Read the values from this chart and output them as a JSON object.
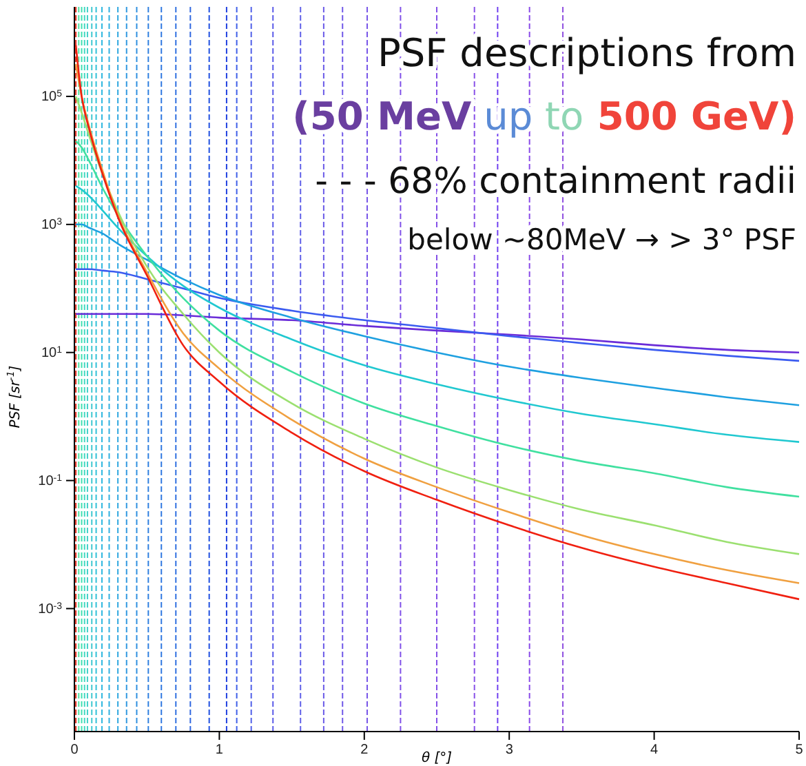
{
  "chart_data": {
    "type": "line",
    "title": "PSF descriptions from",
    "subtitle": "(50 MeV up to 500 GeV)",
    "annotations": [
      "- - - 68% containment radii",
      "below ~80MeV → > 3° PSF"
    ],
    "xlabel": "θ [°]",
    "ylabel": "PSF [sr$^{-1}$]",
    "log": "y",
    "grid": false,
    "marker": "none",
    "line_style": "solid",
    "x": [
      0.01,
      0.05,
      0.1,
      0.2,
      0.3,
      0.5,
      0.75,
      1,
      1.5,
      2,
      2.5,
      3,
      3.5,
      4,
      4.5,
      5
    ],
    "xlim": [
      0,
      5
    ],
    "xticks": [
      0,
      1,
      2,
      3,
      4,
      5
    ],
    "ylim": [
      1.2e-05,
      2500000.0
    ],
    "yticks": [
      {
        "value": 0.001,
        "label": "10$^{-3}$"
      },
      {
        "value": 0.1,
        "label": "10$^{-1}$"
      },
      {
        "value": 10,
        "label": "10$^{1}$"
      },
      {
        "value": 1000,
        "label": "10$^{3}$"
      },
      {
        "value": 100000,
        "label": "10$^{5}$"
      }
    ],
    "series": [
      {
        "color": "#6a2cd8",
        "values": [
          40,
          40,
          40,
          40,
          40,
          40,
          38,
          35,
          32,
          26,
          22,
          19,
          16,
          13,
          11,
          10
        ]
      },
      {
        "color": "#3b5bf0",
        "values": [
          200,
          200,
          200,
          190,
          180,
          140,
          100,
          71,
          45,
          32,
          24,
          18,
          14,
          11,
          8.9,
          7.4
        ]
      },
      {
        "color": "#1ea0e0",
        "values": [
          1000,
          1000,
          890,
          710,
          500,
          280,
          140,
          79,
          35,
          18,
          10,
          6.0,
          4.0,
          2.8,
          2.0,
          1.5
        ]
      },
      {
        "color": "#20c8d0",
        "values": [
          4000,
          3500,
          2800,
          1600,
          890,
          320,
          110,
          50,
          16,
          6.3,
          3.2,
          1.8,
          1.1,
          0.76,
          0.52,
          0.4
        ]
      },
      {
        "color": "#40e0a0",
        "values": [
          20000,
          16000,
          10000,
          3500,
          1400,
          320,
          71,
          22,
          5.0,
          1.6,
          0.71,
          0.35,
          0.2,
          0.13,
          0.079,
          0.056
        ]
      },
      {
        "color": "#9be070",
        "values": [
          100000,
          56000,
          25000,
          5600,
          1600,
          220,
          40,
          10,
          1.6,
          0.45,
          0.16,
          0.071,
          0.035,
          0.02,
          0.011,
          0.0071
        ]
      },
      {
        "color": "#f0a040",
        "values": [
          320000,
          100000,
          35000,
          6300,
          1400,
          180,
          20,
          5.6,
          0.89,
          0.22,
          0.079,
          0.032,
          0.014,
          0.0071,
          0.004,
          0.0025
        ]
      },
      {
        "color": "#f02010",
        "values": [
          630000,
          100000,
          32000,
          5600,
          1300,
          160,
          13,
          3.5,
          0.56,
          0.14,
          0.05,
          0.02,
          0.0089,
          0.0045,
          0.0025,
          0.0014
        ]
      }
    ],
    "ref_lines": [
      {
        "axis": "x",
        "value": 0.01,
        "color": "#e03020",
        "line_style": "dashed"
      },
      {
        "axis": "x",
        "value": 0.03,
        "color": "#50e0a0",
        "line_style": "dashed"
      },
      {
        "axis": "x",
        "value": 0.05,
        "color": "#40e0b0",
        "line_style": "dashed"
      },
      {
        "axis": "x",
        "value": 0.07,
        "color": "#40d8c0",
        "line_style": "dashed"
      },
      {
        "axis": "x",
        "value": 0.09,
        "color": "#40d0c8",
        "line_style": "dashed"
      },
      {
        "axis": "x",
        "value": 0.12,
        "color": "#40c8d0",
        "line_style": "dashed"
      },
      {
        "axis": "x",
        "value": 0.15,
        "color": "#30c0d8",
        "line_style": "dashed"
      },
      {
        "axis": "x",
        "value": 0.19,
        "color": "#30b8e0",
        "line_style": "dashed"
      },
      {
        "axis": "x",
        "value": 0.24,
        "color": "#30b0e0",
        "line_style": "dashed"
      },
      {
        "axis": "x",
        "value": 0.3,
        "color": "#30a8e0",
        "line_style": "dashed"
      },
      {
        "axis": "x",
        "value": 0.36,
        "color": "#3098e0",
        "line_style": "dashed"
      },
      {
        "axis": "x",
        "value": 0.43,
        "color": "#3090e0",
        "line_style": "dashed"
      },
      {
        "axis": "x",
        "value": 0.51,
        "color": "#3080e0",
        "line_style": "dashed"
      },
      {
        "axis": "x",
        "value": 0.6,
        "color": "#3078e0",
        "line_style": "dashed"
      },
      {
        "axis": "x",
        "value": 0.7,
        "color": "#3070e0",
        "line_style": "dashed"
      },
      {
        "axis": "x",
        "value": 0.8,
        "color": "#3068e0",
        "line_style": "dashed"
      },
      {
        "axis": "x",
        "value": 0.93,
        "color": "#2050e0",
        "line_style": "dashed"
      },
      {
        "axis": "x",
        "value": 1.05,
        "color": "#2040e0",
        "line_style": "dashed"
      },
      {
        "axis": "x",
        "value": 1.12,
        "color": "#4060e8",
        "line_style": "dashed"
      },
      {
        "axis": "x",
        "value": 1.22,
        "color": "#5060e8",
        "line_style": "dashed"
      },
      {
        "axis": "x",
        "value": 1.37,
        "color": "#5a5ae8",
        "line_style": "dashed"
      },
      {
        "axis": "x",
        "value": 1.56,
        "color": "#6060e8",
        "line_style": "dashed"
      },
      {
        "axis": "x",
        "value": 1.72,
        "color": "#6a5ae8",
        "line_style": "dashed"
      },
      {
        "axis": "x",
        "value": 1.85,
        "color": "#7058e8",
        "line_style": "dashed"
      },
      {
        "axis": "x",
        "value": 2.02,
        "color": "#7856e8",
        "line_style": "dashed"
      },
      {
        "axis": "x",
        "value": 2.25,
        "color": "#8050e8",
        "line_style": "dashed"
      },
      {
        "axis": "x",
        "value": 2.5,
        "color": "#8450e8",
        "line_style": "dashed"
      },
      {
        "axis": "x",
        "value": 2.76,
        "color": "#8850e8",
        "line_style": "dashed"
      },
      {
        "axis": "x",
        "value": 2.92,
        "color": "#7040f0",
        "line_style": "dashed"
      },
      {
        "axis": "x",
        "value": 3.14,
        "color": "#8848e8",
        "line_style": "dashed"
      },
      {
        "axis": "x",
        "value": 3.37,
        "color": "#9050e0",
        "line_style": "dashed"
      }
    ]
  }
}
